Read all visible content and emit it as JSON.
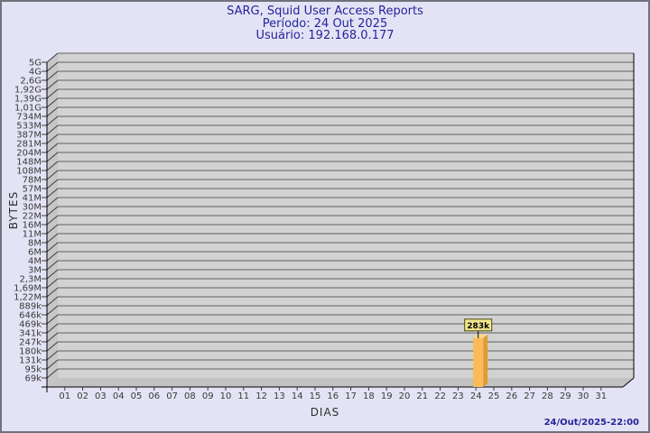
{
  "window": {
    "background": "#e3e3f5",
    "border_color": "#71717d"
  },
  "footer": {
    "generated": "24/Out/2025-22:00"
  },
  "chart_data": {
    "type": "bar",
    "title": "SARG, Squid User Access Reports",
    "subtitle": [
      "Período: 24 Out 2025",
      "Usuário: 192.168.0.177"
    ],
    "title_color": "#24249c",
    "xlabel": "DIAS",
    "ylabel": "BYTES",
    "y_scale": "log",
    "grid": true,
    "y_tick_labels": [
      "5G",
      "4G",
      "2,6G",
      "1,92G",
      "1,39G",
      "1,01G",
      "734M",
      "533M",
      "387M",
      "281M",
      "204M",
      "148M",
      "108M",
      "78M",
      "57M",
      "41M",
      "30M",
      "22M",
      "16M",
      "11M",
      "8M",
      "6M",
      "4M",
      "3M",
      "2,3M",
      "1,69M",
      "1,22M",
      "889k",
      "646k",
      "469k",
      "341k",
      "247k",
      "180k",
      "131k",
      "95k",
      "69k"
    ],
    "x_tick_labels": [
      "01",
      "02",
      "03",
      "04",
      "05",
      "06",
      "07",
      "08",
      "09",
      "10",
      "11",
      "12",
      "13",
      "14",
      "15",
      "16",
      "17",
      "18",
      "19",
      "20",
      "21",
      "22",
      "23",
      "24",
      "25",
      "26",
      "27",
      "28",
      "29",
      "30",
      "31"
    ],
    "bars": [
      {
        "x": "24",
        "value_label": "283k",
        "value_bytes": 283000
      }
    ],
    "colors": {
      "plot_bg": "#d2d2d2",
      "grid_line": "#606060",
      "wall": "#c6c6c6",
      "wall_line": "#3c3c3c",
      "floor": "#c2c2c2",
      "axis": "#000000",
      "tick_text": "#3a3a3a",
      "bar_front": "#fbbb58",
      "bar_side": "#de9c36",
      "bar_top": "#ffd68c",
      "value_label_bg": "#f0e68c",
      "value_label_border": "#4a4a14",
      "value_label_text": "#000000"
    }
  }
}
